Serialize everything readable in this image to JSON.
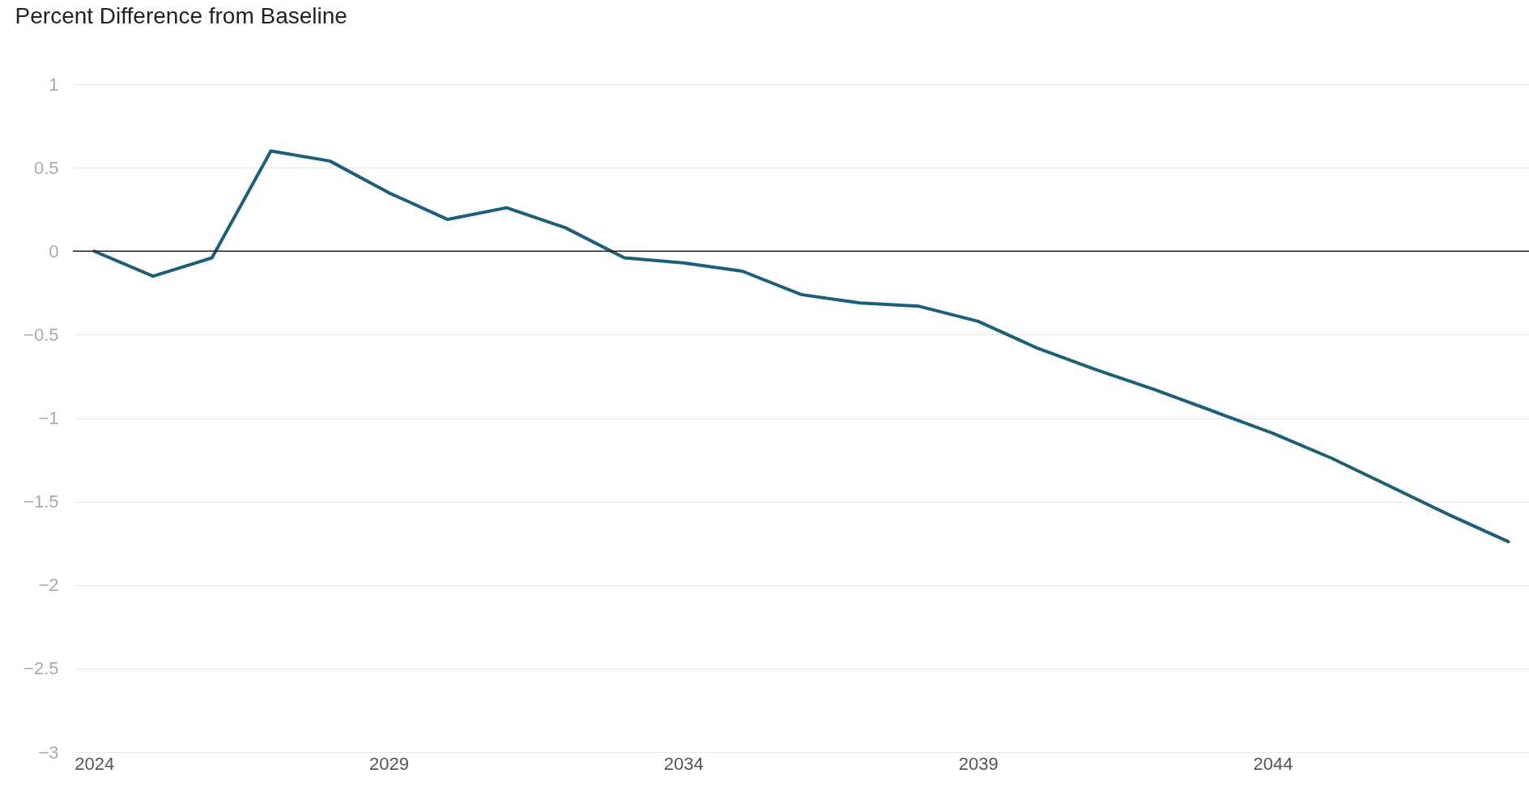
{
  "chart_data": {
    "type": "line",
    "title": "Percent Difference from Baseline",
    "x": [
      2024,
      2025,
      2026,
      2027,
      2028,
      2029,
      2030,
      2031,
      2032,
      2033,
      2034,
      2035,
      2036,
      2037,
      2038,
      2039,
      2040,
      2041,
      2042,
      2043,
      2044,
      2045,
      2046,
      2047,
      2048
    ],
    "series": [
      {
        "color": "#1d5f78",
        "values": [
          0,
          -0.15,
          -0.04,
          0.6,
          0.54,
          0.35,
          0.19,
          0.26,
          0.14,
          -0.04,
          -0.07,
          -0.12,
          -0.26,
          -0.31,
          -0.33,
          -0.42,
          -0.58,
          -0.71,
          -0.83,
          -0.96,
          -1.09,
          -1.24,
          -1.41,
          -1.58,
          -1.74
        ]
      }
    ],
    "xlim": [
      2023.64,
      2048.35
    ],
    "xticks": [
      2024,
      2029,
      2034,
      2039,
      2044
    ],
    "ylim": [
      -3,
      1
    ],
    "yticks": [
      1,
      0.5,
      0,
      {
        "value": -0.5,
        "label": "−0.5"
      },
      {
        "value": -1,
        "label": "−1"
      },
      {
        "value": -1.5,
        "label": "−1.5"
      },
      {
        "value": -2,
        "label": "−2"
      },
      {
        "value": -2.5,
        "label": "−2.5"
      },
      {
        "value": -3,
        "label": "−3"
      }
    ],
    "grid": "y",
    "marker": "none",
    "line_style": "solid",
    "ref_lines": [
      {
        "axis": "y",
        "value": 0,
        "color": "#222222"
      }
    ]
  }
}
